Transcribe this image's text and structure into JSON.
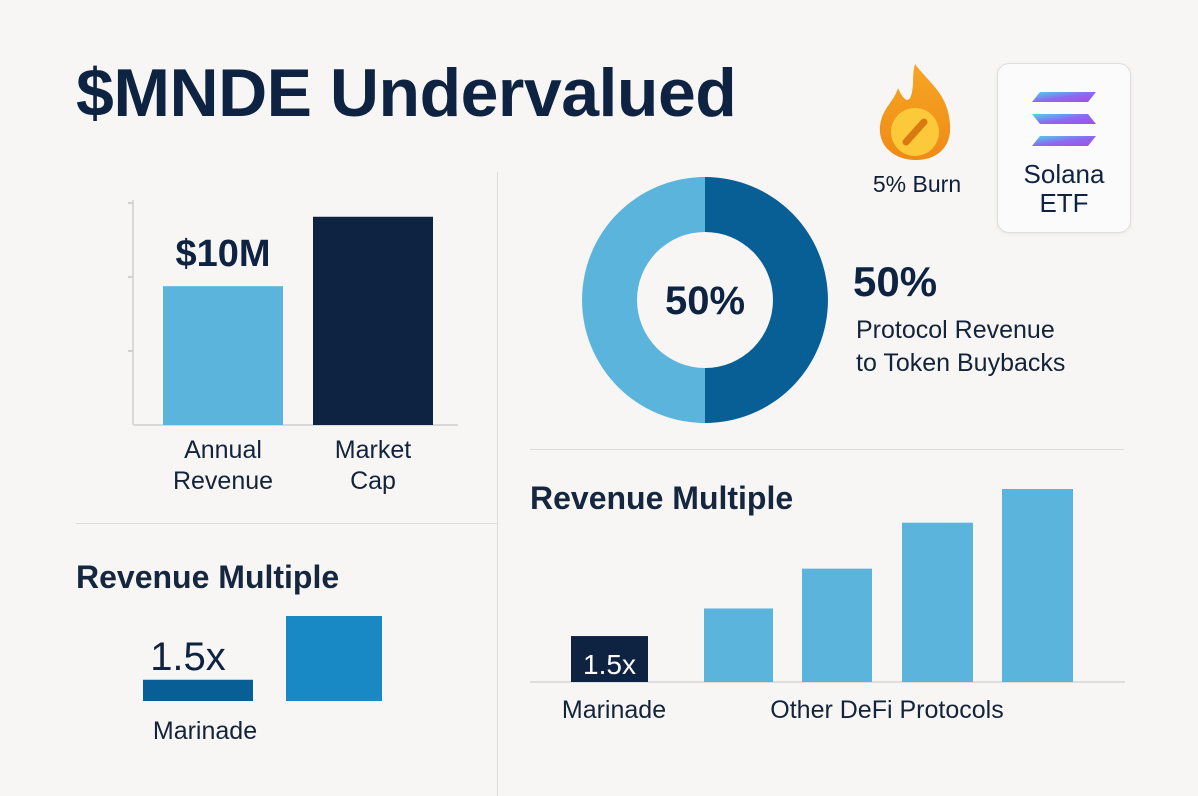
{
  "title": "$MNDE Undervalued",
  "colors": {
    "navy": "#0e2341",
    "light_blue": "#5ab4dc",
    "mid_blue": "#075f95",
    "bright_blue": "#1889c5"
  },
  "badges": {
    "burn": {
      "label": "5% Burn",
      "icon": "flame-icon"
    },
    "etf": {
      "label": "Solana\nETF",
      "icon": "solana-logo-icon"
    }
  },
  "donut": {
    "center_label": "50%",
    "headline": "50%",
    "description": "Protocol Revenue\nto Token Buybacks"
  },
  "chart_data": [
    {
      "type": "bar",
      "categories": [
        "Annual Revenue",
        "Market Cap"
      ],
      "category_labels": [
        [
          "Annual",
          "Revenue"
        ],
        [
          "Market",
          "Cap"
        ]
      ],
      "values": [
        10,
        15
      ],
      "data_labels": [
        "$10M",
        ""
      ],
      "colors": [
        "#5ab4dc",
        "#0e2341"
      ],
      "ylim": [
        0,
        17
      ]
    },
    {
      "type": "pie",
      "categories": [
        "Token Buybacks",
        "Other"
      ],
      "values": [
        50,
        50
      ],
      "center_label": "50%",
      "colors": [
        "#075f95",
        "#5ab4dc"
      ]
    },
    {
      "type": "bar",
      "title": "Revenue Multiple",
      "categories": [
        "Marinade",
        ""
      ],
      "category_label": "Marinade",
      "values": [
        1.5,
        6
      ],
      "data_labels": [
        "1.5x",
        ""
      ],
      "colors": [
        "#075f95",
        "#1889c5"
      ],
      "ylim": [
        0,
        6
      ]
    },
    {
      "type": "bar",
      "title": "Revenue Multiple",
      "categories": [
        "Marinade",
        "Other DeFi Protocols",
        "Other DeFi Protocols",
        "Other DeFi Protocols",
        "Other DeFi Protocols"
      ],
      "group_labels": [
        "Marinade",
        "Other DeFi Protocols"
      ],
      "values": [
        1.5,
        2.4,
        3.7,
        5.2,
        6.3
      ],
      "data_labels": [
        "1.5x",
        "",
        "",
        "",
        ""
      ],
      "colors": [
        "#0e2341",
        "#5ab4dc",
        "#5ab4dc",
        "#5ab4dc",
        "#5ab4dc"
      ],
      "ylim": [
        0,
        6.3
      ]
    }
  ]
}
